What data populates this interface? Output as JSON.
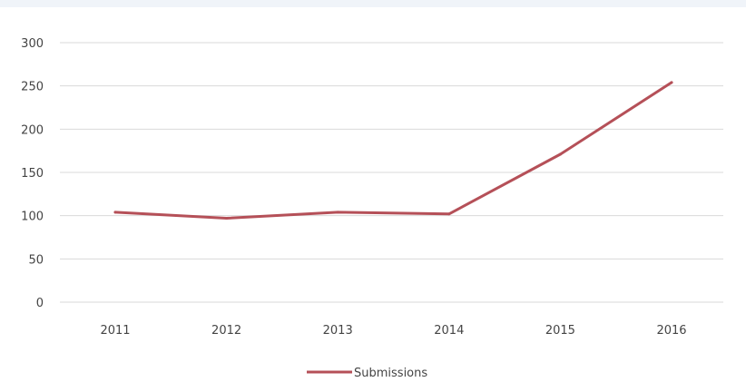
{
  "chart_data": {
    "type": "line",
    "title": "",
    "xlabel": "",
    "ylabel": "",
    "categories": [
      "2011",
      "2012",
      "2013",
      "2014",
      "2015",
      "2016"
    ],
    "series": [
      {
        "name": "Submissions",
        "values": [
          104,
          97,
          104,
          102,
          171,
          254
        ],
        "color": "#b55058"
      }
    ],
    "ylim": [
      0,
      300
    ],
    "yticks": [
      "0",
      "50",
      "100",
      "150",
      "200",
      "250",
      "300"
    ],
    "grid": true,
    "legend_position": "bottom"
  }
}
